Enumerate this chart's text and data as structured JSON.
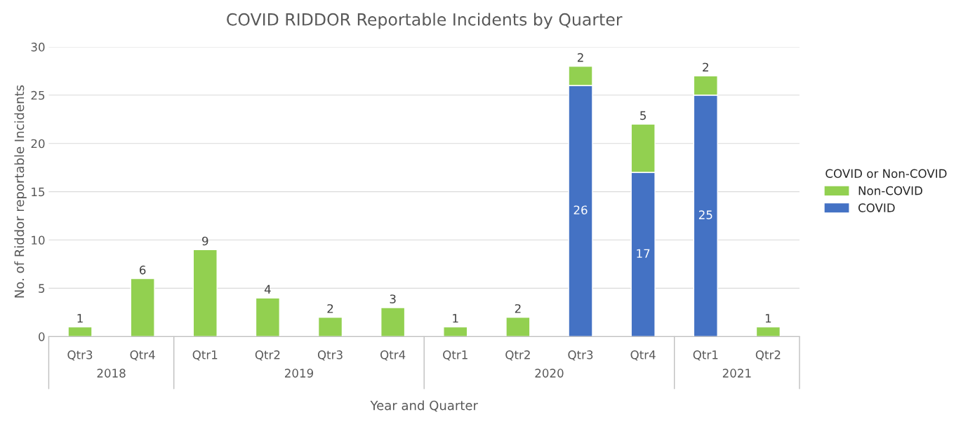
{
  "chart_data": {
    "type": "bar",
    "title": "COVID RIDDOR Reportable Incidents by Quarter",
    "xlabel": "Year and Quarter",
    "ylabel": "No. of Riddor reportable Incidents",
    "legend_title": "COVID or Non-COVID",
    "categories": [
      "Qtr3",
      "Qtr4",
      "Qtr1",
      "Qtr2",
      "Qtr3",
      "Qtr4",
      "Qtr1",
      "Qtr2",
      "Qtr3",
      "Qtr4",
      "Qtr1",
      "Qtr2"
    ],
    "series": [
      {
        "name": "COVID",
        "color": "#4472c4",
        "values": [
          null,
          null,
          null,
          null,
          null,
          null,
          null,
          null,
          26,
          17,
          25,
          null
        ]
      },
      {
        "name": "Non-COVID",
        "color": "#92d050",
        "values": [
          1,
          6,
          9,
          4,
          2,
          3,
          1,
          2,
          2,
          5,
          2,
          1
        ]
      }
    ],
    "stacked": true,
    "data_labels": true,
    "ylim": [
      0,
      30
    ],
    "yticks": [
      0,
      5,
      10,
      15,
      20,
      25,
      30
    ],
    "grid": "y",
    "legend": "right",
    "annotations": [
      "2018",
      "2019",
      "2020",
      "2021"
    ]
  }
}
